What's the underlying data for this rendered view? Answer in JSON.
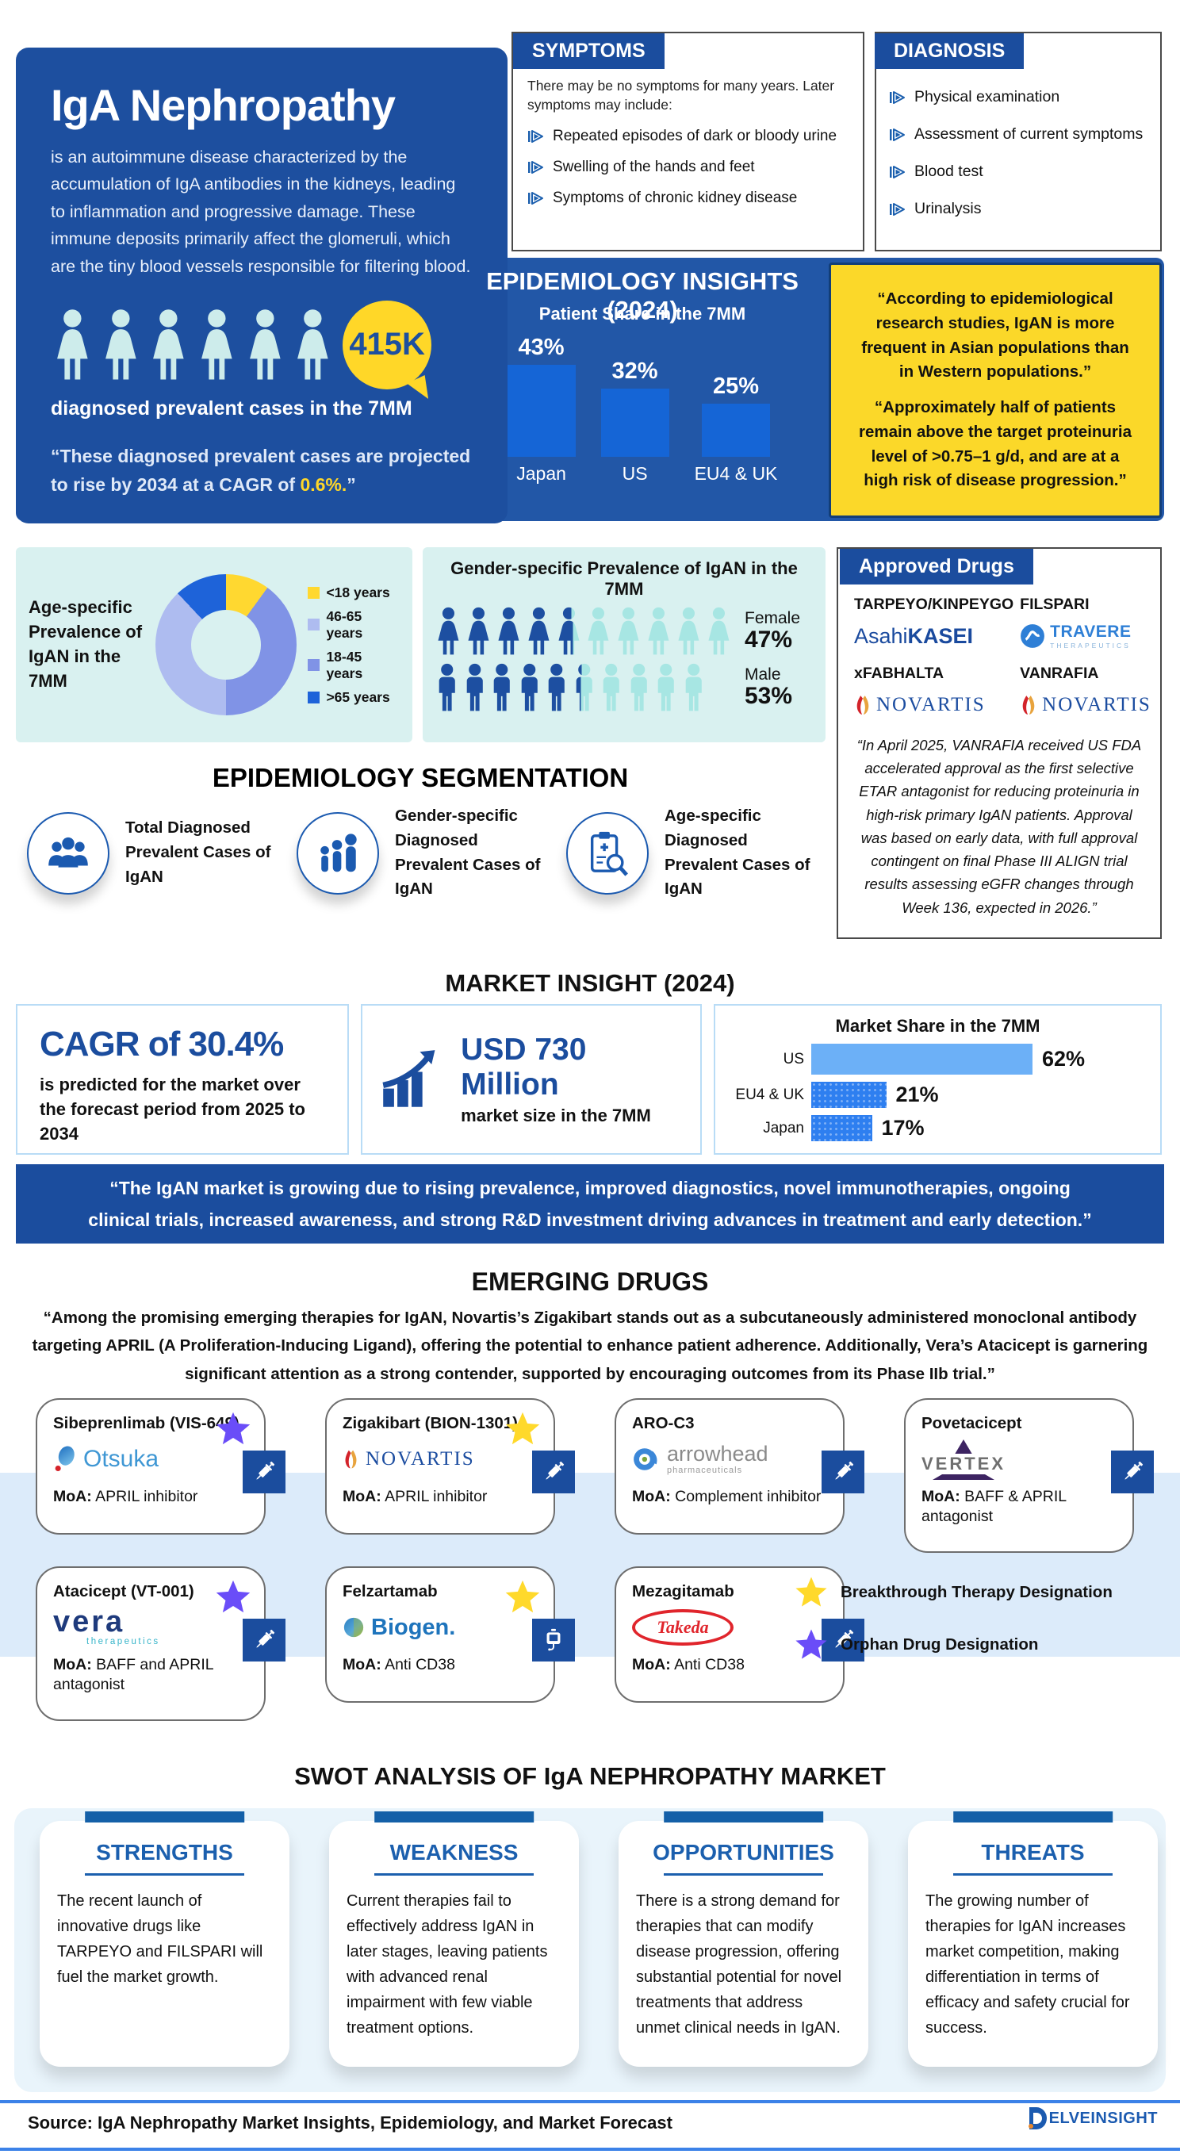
{
  "header": {
    "title": "IgA Nephropathy",
    "description": "is an autoimmune disease characterized by the accumulation of IgA antibodies in the kidneys, leading to inflammation and progressive damage. These immune deposits primarily affect the glomeruli, which are the tiny blood vessels responsible for filtering blood."
  },
  "symptoms": {
    "title": "SYMPTOMS",
    "intro": "There may be no symptoms for many years. Later symptoms may include:",
    "items": [
      "Repeated episodes of dark or bloody urine",
      "Swelling of the hands and feet",
      "Symptoms of chronic kidney disease"
    ]
  },
  "diagnosis": {
    "title": "DIAGNOSIS",
    "items": [
      "Physical examination",
      "Assessment of current symptoms",
      "Blood test",
      "Urinalysis"
    ]
  },
  "epidemiology": {
    "section_title": "EPIDEMIOLOGY INSIGHTS (2024)",
    "projection_prefix": "“These diagnosed prevalent cases are projected to rise by 2034 at a CAGR of ",
    "projection_cagr": "0.6%.",
    "projection_suffix": "”",
    "quotes": [
      "“According to epidemiological research studies, IgAN is more frequent in Asian populations than in Western populations.”",
      "“Approximately half of patients remain above the target proteinuria level of >0.75–1 g/d, and are at a high risk of disease progression.”"
    ]
  },
  "chart_data": [
    {
      "type": "bar",
      "title": "Patient Share in the 7MM",
      "categories": [
        "Japan",
        "US",
        "EU4 & UK"
      ],
      "values": [
        43,
        32,
        25
      ],
      "labels": [
        "43%",
        "32%",
        "25%"
      ],
      "bar_color": "#1565d6",
      "ylim": [
        0,
        50
      ],
      "grid": false
    },
    {
      "type": "pie",
      "title": "Age-specific Prevalence of IgAN in the 7MM",
      "donut": true,
      "segments": [
        {
          "label": "<18 years",
          "value": 10,
          "color": "#ffd830"
        },
        {
          "label": "18-45 years",
          "value": 40,
          "color": "#8093e6"
        },
        {
          "label": "46-65 years",
          "value": 38,
          "color": "#aebcf0"
        },
        {
          "label": ">65 years",
          "value": 12,
          "color": "#1e63d9"
        }
      ],
      "legend_display_order": [
        "<18 years",
        "46-65 years",
        "18-45 years",
        ">65 years"
      ]
    },
    {
      "type": "pictogram",
      "title": "Gender-specific Prevalence of IgAN in the 7MM",
      "rows": [
        {
          "label": "Female",
          "value": 47,
          "value_label": "47%",
          "icon": "female",
          "total_icons": 10,
          "filled_icons": 4.7,
          "fill": "#1d4fa1",
          "empty": "#a7e6e3"
        },
        {
          "label": "Male",
          "value": 53,
          "value_label": "53%",
          "icon": "male",
          "total_icons": 10,
          "filled_icons": 5.3,
          "fill": "#1d4fa1",
          "empty": "#a7e6e3"
        }
      ]
    },
    {
      "type": "bar",
      "orientation": "horizontal",
      "title": "Market Share in the 7MM",
      "rows": [
        {
          "label": "US",
          "value": 62,
          "value_label": "62%",
          "color": "#6cb0f7",
          "style": "solid"
        },
        {
          "label": "EU4 & UK",
          "value": 21,
          "value_label": "21%",
          "color": "#2e7ff0",
          "style": "dotted"
        },
        {
          "label": "Japan",
          "value": 17,
          "value_label": "17%",
          "color": "#2e7ff0",
          "style": "dotted"
        }
      ],
      "xlim": [
        0,
        100
      ]
    },
    {
      "type": "pictogram",
      "value_label": "415K",
      "label": "diagnosed prevalent cases in the 7MM",
      "icon": "female",
      "total_icons": 6,
      "filled_icons": 6,
      "fill": "#cdeceb"
    }
  ],
  "approved_drugs": {
    "title": "Approved Drugs",
    "items": [
      {
        "name": "TARPEYO/KINPEYGO",
        "logo_a": "Asahi",
        "logo_b": "KASEI"
      },
      {
        "name": "FILSPARI",
        "logo_brand": "TRAVERE",
        "logo_sub": "THERAPEUTICS"
      },
      {
        "name": "xFABHALTA",
        "logo_brand": "NOVARTIS"
      },
      {
        "name": "VANRAFIA",
        "logo_brand": "NOVARTIS"
      }
    ],
    "note": "“In April 2025, VANRAFIA received US FDA accelerated approval as the first selective ETAR antagonist for reducing proteinuria in high-risk primary IgAN patients. Approval was based on early data, with full approval contingent on final Phase III ALIGN trial results assessing eGFR changes through Week 136, expected in 2026.”"
  },
  "segmentation": {
    "title": "EPIDEMIOLOGY SEGMENTATION",
    "items": [
      {
        "label": "Total Diagnosed Prevalent Cases of IgAN",
        "icon": "people-group-icon"
      },
      {
        "label": "Gender-specific Diagnosed Prevalent Cases of IgAN",
        "icon": "family-icon"
      },
      {
        "label": "Age-specific Diagnosed Prevalent Cases of IgAN",
        "icon": "clipboard-search-icon"
      }
    ]
  },
  "market": {
    "title": "MARKET INSIGHT (2024)",
    "cagr_headline": "CAGR of 30.4%",
    "cagr_desc": "is predicted for the market over the forecast period from 2025 to 2034",
    "size_value": "USD 730 Million",
    "size_desc": "market size in the 7MM"
  },
  "banner": {
    "quote": "“The IgAN market is growing due to rising prevalence, improved diagnostics, novel immunotherapies, ongoing clinical trials, increased awareness, and strong R&D investment driving advances in treatment and early detection.”"
  },
  "emerging": {
    "title": "EMERGING DRUGS",
    "intro": "“Among the promising emerging therapies for IgAN, Novartis’s Zigakibart stands out as a subcutaneously administered monoclonal antibody targeting APRIL (A Proliferation-Inducing Ligand), offering the potential to enhance patient adherence. Additionally, Vera’s Atacicept is garnering significant attention as a strong contender, supported by encouraging outcomes from its Phase IIb trial.”",
    "star_colors": {
      "yellow": "#ffd92b",
      "purple": "#6a4df8"
    },
    "moa_label": "MoA:",
    "cards": [
      {
        "name": "Sibeprenlimab (VIS-649)",
        "moa": "APRIL inhibitor",
        "star": "purple",
        "logo_brand": "Otsuka"
      },
      {
        "name": "Zigakibart (BION-1301)",
        "moa": "APRIL inhibitor",
        "star": "yellow",
        "logo_brand": "NOVARTIS"
      },
      {
        "name": "ARO-C3",
        "moa": "Complement inhibitor",
        "star": "none",
        "logo_brand": "arrowhead",
        "logo_sub": "pharmaceuticals"
      },
      {
        "name": "Povetacicept",
        "moa": "BAFF & APRIL antagonist",
        "star": "none",
        "logo_brand": "VERTEX"
      },
      {
        "name": "Atacicept (VT-001)",
        "moa": "BAFF and APRIL antagonist",
        "star": "purple",
        "logo_brand": "vera",
        "logo_sub": "therapeutics"
      },
      {
        "name": "Felzartamab",
        "moa": "Anti CD38",
        "star": "yellow",
        "logo_brand": "Biogen."
      },
      {
        "name": "Mezagitamab",
        "moa": "Anti CD38",
        "star": "none",
        "logo_brand": "Takeda"
      }
    ],
    "legend": [
      {
        "star": "yellow",
        "label": "Breakthrough Therapy Designation"
      },
      {
        "star": "purple",
        "label": "Orphan Drug Designation"
      }
    ]
  },
  "swot": {
    "title": "SWOT ANALYSIS OF IgA NEPHROPATHY MARKET",
    "cards": [
      {
        "heading": "STRENGTHS",
        "text": "The recent launch of innovative drugs like TARPEYO and FILSPARI will fuel the market growth."
      },
      {
        "heading": "WEAKNESS",
        "text": "Current therapies fail to effectively address IgAN in later stages, leaving patients with advanced renal impairment with few viable treatment options."
      },
      {
        "heading": "OPPORTUNITIES",
        "text": "There is a strong demand for therapies that can modify disease progression, offering substantial potential for novel treatments that address unmet clinical needs in IgAN."
      },
      {
        "heading": "THREATS",
        "text": "The growing number of therapies for IgAN increases market competition, making differentiation in terms of efficacy and safety crucial for success."
      }
    ]
  },
  "footer": {
    "source": "Source: IgA Nephropathy Market Insights, Epidemiology, and Market Forecast",
    "brand_d": "D",
    "brand_text": "ELVEINSIGHT"
  }
}
